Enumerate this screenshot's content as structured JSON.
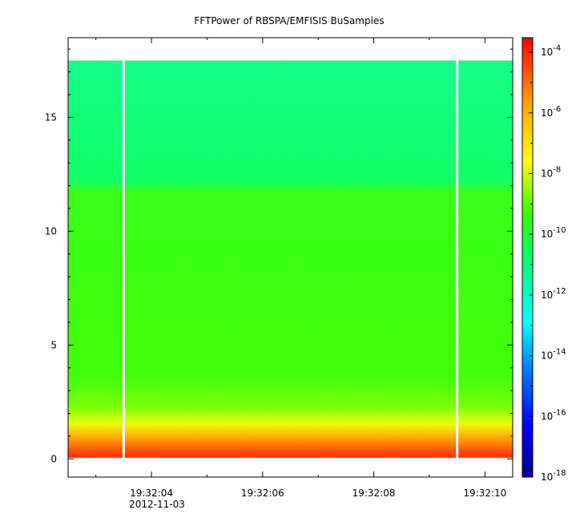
{
  "chart_data": {
    "type": "heatmap",
    "title": "FFTPower of RBSPA/EMFISIS  BuSamples",
    "xlabel": "",
    "ylabel": "",
    "x_tick_labels": [
      "19:32:04",
      "19:32:06",
      "19:32:08",
      "19:32:10"
    ],
    "x_date_label": "2012-11-03",
    "x_range": [
      "19:32:02.5",
      "19:32:10.5"
    ],
    "y_ticks": [
      0,
      5,
      10,
      15
    ],
    "y_range": [
      -0.8,
      18.5
    ],
    "data_extent_y": [
      0.05,
      17.5
    ],
    "data_gaps_x": [
      "19:32:03.5",
      "19:32:09.5"
    ],
    "colorbar": {
      "scale": "log",
      "range": [
        1e-18,
        0.0003
      ],
      "tick_labels": [
        {
          "base": "10",
          "exp": "-4"
        },
        {
          "base": "10",
          "exp": "-6"
        },
        {
          "base": "10",
          "exp": "-8"
        },
        {
          "base": "10",
          "exp": "-10"
        },
        {
          "base": "10",
          "exp": "-12"
        },
        {
          "base": "10",
          "exp": "-14"
        },
        {
          "base": "10",
          "exp": "-16"
        },
        {
          "base": "10",
          "exp": "-18"
        }
      ],
      "colormap": [
        "#00008b",
        "#0000ff",
        "#00bfff",
        "#00ffff",
        "#00ff66",
        "#33ff00",
        "#ffff00",
        "#ffa500",
        "#ff0000"
      ]
    },
    "frequency_bands": [
      {
        "y_from": 0.05,
        "y_to": 1.0,
        "log10_power": -5.5
      },
      {
        "y_from": 1.0,
        "y_to": 2.0,
        "log10_power": -7.5
      },
      {
        "y_from": 2.0,
        "y_to": 3.0,
        "log10_power": -9.0
      },
      {
        "y_from": 3.0,
        "y_to": 12.3,
        "log10_power": -10.2
      },
      {
        "y_from": 12.3,
        "y_to": 17.5,
        "log10_power": -12.3
      }
    ]
  }
}
